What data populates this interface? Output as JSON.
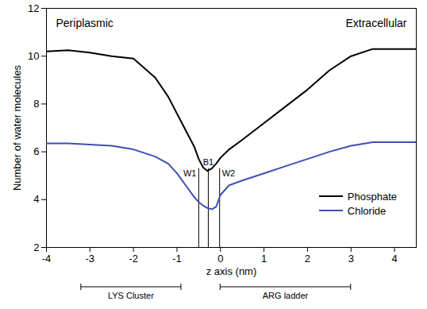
{
  "chart_data": {
    "type": "line",
    "x_label": "z axis (nm)",
    "y_label": "Number of water molecules",
    "x": [
      -4,
      -3.5,
      -3,
      -2.5,
      -2,
      -1.5,
      -1.2,
      -1,
      -0.8,
      -0.6,
      -0.5,
      -0.4,
      -0.3,
      -0.2,
      -0.1,
      0,
      0.2,
      0.5,
      1,
      1.5,
      2,
      2.5,
      3,
      3.5,
      4,
      4.5
    ],
    "series": [
      {
        "name": "Phosphate",
        "color": "#000000",
        "values": [
          10.2,
          10.25,
          10.15,
          10.0,
          9.9,
          9.1,
          8.3,
          7.6,
          6.9,
          6.2,
          5.7,
          5.35,
          5.2,
          5.3,
          5.5,
          5.75,
          6.1,
          6.5,
          7.2,
          7.9,
          8.6,
          9.4,
          10.0,
          10.3,
          10.3,
          10.3
        ]
      },
      {
        "name": "Chloride",
        "color": "#3c50b4",
        "values": [
          6.35,
          6.35,
          6.3,
          6.25,
          6.1,
          5.8,
          5.5,
          5.1,
          4.6,
          4.1,
          3.9,
          3.75,
          3.65,
          3.6,
          3.7,
          4.2,
          4.6,
          4.8,
          5.1,
          5.4,
          5.7,
          6.0,
          6.25,
          6.4,
          6.4,
          6.4
        ]
      }
    ],
    "xlim": [
      -4,
      4.5
    ],
    "xticks": [
      -4,
      -3,
      -2,
      -1,
      0,
      1,
      2,
      3,
      4
    ],
    "ylim": [
      2,
      12
    ],
    "yticks": [
      2,
      4,
      6,
      8,
      10,
      12
    ],
    "grid": false,
    "legend": "bottom-right",
    "annotations": {
      "left_region": "Periplasmic",
      "right_region": "Extracellular",
      "markers": [
        {
          "label": "W1",
          "x": -0.5
        },
        {
          "label": "B1",
          "x": -0.28
        },
        {
          "label": "W2",
          "x": -0.02
        }
      ],
      "ranges": [
        {
          "label": "LYS Cluster",
          "x": [
            -3.2,
            -0.9
          ]
        },
        {
          "label": "ARG ladder",
          "x": [
            0,
            3
          ]
        }
      ]
    }
  }
}
